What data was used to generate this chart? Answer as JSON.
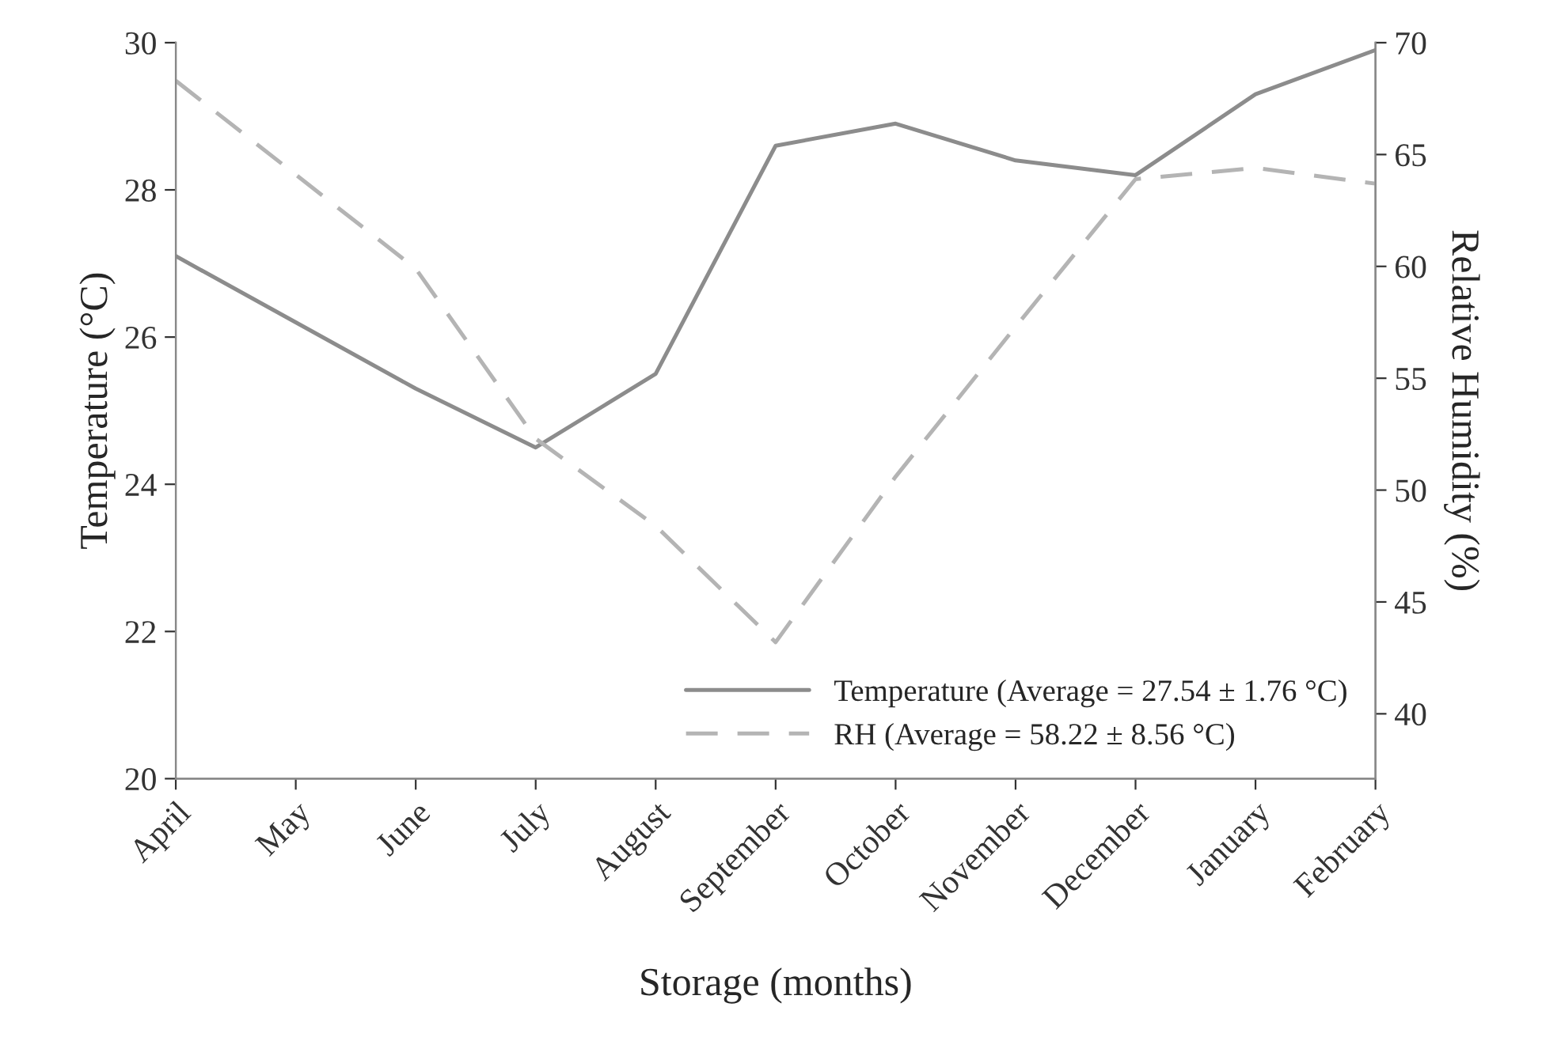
{
  "chart_data": {
    "type": "line",
    "xlabel": "Storage (months)",
    "ylabel": "Temperature (°C)",
    "y2label": "Relative Humidity (%)",
    "categories": [
      "April",
      "May",
      "June",
      "July",
      "August",
      "September",
      "October",
      "November",
      "December",
      "January",
      "February"
    ],
    "series": [
      {
        "name": "Temperature (Average = 27.54 ± 1.76 °C)",
        "color": "#8c8c8c",
        "line_style": "solid",
        "values": [
          27.1,
          26.2,
          25.3,
          24.5,
          25.5,
          28.6,
          28.9,
          28.4,
          28.2,
          29.3,
          29.9
        ]
      },
      {
        "name": "RH (Average = 58.22 ± 8.56 °C)",
        "color": "#b4b4b4",
        "line_style": "dashed",
        "axis": "y2",
        "values": [
          68.3,
          64.1,
          59.9,
          52.3,
          48.4,
          43.2,
          50.6,
          57.3,
          63.9,
          64.4,
          63.7
        ]
      }
    ],
    "ylim": [
      20,
      30
    ],
    "yticks": [
      20,
      22,
      24,
      26,
      28,
      30
    ],
    "y2lim": [
      37.1,
      70
    ],
    "y2ticks": [
      40,
      45,
      50,
      55,
      60,
      65,
      70
    ],
    "grid": false,
    "legend": "bottom right",
    "marker": "none"
  }
}
